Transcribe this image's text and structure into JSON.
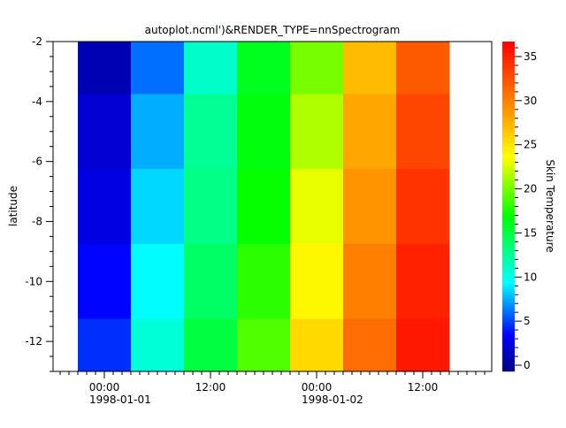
{
  "chart_data": {
    "type": "heatmap",
    "title": "autoplot.ncml')&RENDER_TYPE=nnSpectrogram",
    "xlabel": "",
    "ylabel": "latitude",
    "zlabel": "Skin Temperature",
    "x": [
      "1998-01-01T00:00",
      "1998-01-01T06:00",
      "1998-01-01T12:00",
      "1998-01-01T18:00",
      "1998-01-02T00:00",
      "1998-01-02T06:00",
      "1998-01-02T12:00"
    ],
    "y": [
      -2.5,
      -5,
      -7.5,
      -10,
      -12.5
    ],
    "z": [
      [
        1.0,
        6.0,
        11.0,
        16.0,
        20.0,
        27.0,
        32.0
      ],
      [
        2.0,
        7.5,
        12.5,
        16.5,
        21.5,
        28.0,
        33.0
      ],
      [
        2.5,
        8.5,
        13.0,
        17.0,
        23.0,
        29.0,
        34.0
      ],
      [
        3.5,
        9.5,
        14.0,
        18.0,
        24.0,
        30.0,
        35.0
      ],
      [
        4.5,
        10.5,
        15.0,
        19.0,
        25.5,
        31.0,
        35.5
      ]
    ],
    "xlim": [
      "1997-12-31T18:12",
      "1998-01-02T19:48"
    ],
    "ylim": [
      -13,
      -2
    ],
    "zlim": [
      -0.7,
      36.7
    ],
    "x_ticks": [
      {
        "time": "1998-01-01T00:00",
        "label": "00:00",
        "date": "1998-01-01"
      },
      {
        "time": "1998-01-01T12:00",
        "label": "12:00",
        "date": ""
      },
      {
        "time": "1998-01-02T00:00",
        "label": "00:00",
        "date": "1998-01-02"
      },
      {
        "time": "1998-01-02T12:00",
        "label": "12:00",
        "date": ""
      }
    ],
    "y_ticks": [
      "-2",
      "-4",
      "-6",
      "-8",
      "-10",
      "-12"
    ],
    "z_ticks": [
      "0",
      "5",
      "10",
      "15",
      "20",
      "25",
      "30",
      "35"
    ],
    "colormap": [
      "#000080",
      "#0000ff",
      "#00ffff",
      "#00ff00",
      "#ffff00",
      "#ff8000",
      "#ff0000"
    ],
    "grid": false,
    "legend": "colorbar-right"
  }
}
